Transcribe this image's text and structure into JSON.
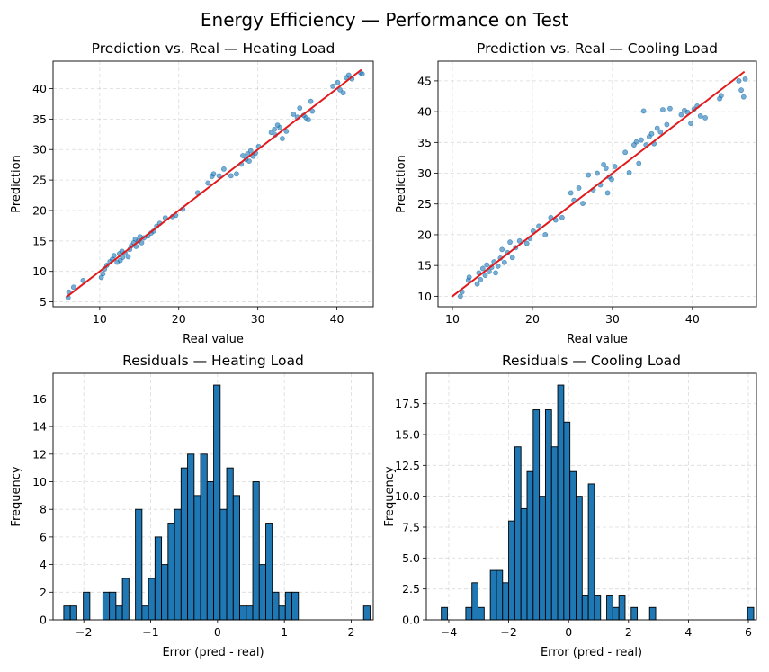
{
  "figure": {
    "title": "Energy Efficiency — Performance on Test"
  },
  "colors": {
    "scatter": "#1f77b4",
    "line": "#e31a1c",
    "bar": "#1f77b4",
    "bar_edge": "#000000",
    "grid": "#b0b0b0"
  },
  "chart_data": [
    {
      "type": "scatter",
      "title": "Prediction vs. Real — Heating Load",
      "xlabel": "Real value",
      "ylabel": "Prediction",
      "xlim": [
        4.1,
        44.6
      ],
      "ylim": [
        4.2,
        44.5
      ],
      "xticks": [
        10,
        20,
        30,
        40
      ],
      "yticks": [
        5,
        10,
        15,
        20,
        25,
        30,
        35,
        40
      ],
      "grid": true,
      "reference_line": {
        "x": [
          5.8,
          43.1
        ],
        "y": [
          5.8,
          43.1
        ]
      },
      "points": [
        [
          6.0,
          5.7
        ],
        [
          6.1,
          6.6
        ],
        [
          6.7,
          7.4
        ],
        [
          7.9,
          8.5
        ],
        [
          10.2,
          9.0
        ],
        [
          10.4,
          9.6
        ],
        [
          10.6,
          10.4
        ],
        [
          10.9,
          11.0
        ],
        [
          11.3,
          11.6
        ],
        [
          11.6,
          12.0
        ],
        [
          11.8,
          12.6
        ],
        [
          12.2,
          11.5
        ],
        [
          12.6,
          11.8
        ],
        [
          12.5,
          12.9
        ],
        [
          12.9,
          12.3
        ],
        [
          12.8,
          13.3
        ],
        [
          13.2,
          13.0
        ],
        [
          13.6,
          12.4
        ],
        [
          13.8,
          13.6
        ],
        [
          14.0,
          14.2
        ],
        [
          14.3,
          14.7
        ],
        [
          14.5,
          15.3
        ],
        [
          14.6,
          14.1
        ],
        [
          14.9,
          15.0
        ],
        [
          15.1,
          15.7
        ],
        [
          15.3,
          14.7
        ],
        [
          15.6,
          15.5
        ],
        [
          16.1,
          15.8
        ],
        [
          16.5,
          16.3
        ],
        [
          16.8,
          16.6
        ],
        [
          17.2,
          17.4
        ],
        [
          17.6,
          17.9
        ],
        [
          18.3,
          18.8
        ],
        [
          19.2,
          19.0
        ],
        [
          19.6,
          19.2
        ],
        [
          20.5,
          20.2
        ],
        [
          22.4,
          22.9
        ],
        [
          23.7,
          24.5
        ],
        [
          24.2,
          25.6
        ],
        [
          24.4,
          26.0
        ],
        [
          25.1,
          25.7
        ],
        [
          25.7,
          26.8
        ],
        [
          26.6,
          25.7
        ],
        [
          27.3,
          26.0
        ],
        [
          27.9,
          27.6
        ],
        [
          28.1,
          29.0
        ],
        [
          28.5,
          28.4
        ],
        [
          28.7,
          29.3
        ],
        [
          28.9,
          28.1
        ],
        [
          29.1,
          29.8
        ],
        [
          29.4,
          28.9
        ],
        [
          29.7,
          29.4
        ],
        [
          30.1,
          30.5
        ],
        [
          31.7,
          32.8
        ],
        [
          32.1,
          33.3
        ],
        [
          32.2,
          32.4
        ],
        [
          32.5,
          34.0
        ],
        [
          32.8,
          33.6
        ],
        [
          33.1,
          31.8
        ],
        [
          33.6,
          33.0
        ],
        [
          34.5,
          35.8
        ],
        [
          35.0,
          35.3
        ],
        [
          35.3,
          36.8
        ],
        [
          35.8,
          35.6
        ],
        [
          36.1,
          35.2
        ],
        [
          36.4,
          34.9
        ],
        [
          36.7,
          37.9
        ],
        [
          36.9,
          36.3
        ],
        [
          39.5,
          40.4
        ],
        [
          40.1,
          41.0
        ],
        [
          40.4,
          39.8
        ],
        [
          40.8,
          39.3
        ],
        [
          41.2,
          41.8
        ],
        [
          41.5,
          42.2
        ],
        [
          41.9,
          41.6
        ],
        [
          43.0,
          42.6
        ],
        [
          43.2,
          42.4
        ]
      ]
    },
    {
      "type": "scatter",
      "title": "Prediction vs. Real — Cooling Load",
      "xlabel": "Real value",
      "ylabel": "Prediction",
      "xlim": [
        8.2,
        48.0
      ],
      "ylim": [
        8.3,
        48.2
      ],
      "xticks": [
        10,
        20,
        30,
        40
      ],
      "yticks": [
        10,
        15,
        20,
        25,
        30,
        35,
        40,
        45
      ],
      "grid": true,
      "reference_line": {
        "x": [
          9.9,
          46.5
        ],
        "y": [
          9.9,
          46.5
        ]
      },
      "points": [
        [
          11.0,
          10.0
        ],
        [
          11.2,
          10.7
        ],
        [
          12.0,
          12.6
        ],
        [
          12.1,
          13.1
        ],
        [
          13.1,
          12.0
        ],
        [
          13.3,
          13.8
        ],
        [
          13.5,
          12.7
        ],
        [
          13.8,
          14.5
        ],
        [
          14.1,
          13.4
        ],
        [
          14.3,
          15.1
        ],
        [
          14.6,
          14.0
        ],
        [
          14.9,
          14.7
        ],
        [
          15.2,
          15.6
        ],
        [
          15.4,
          13.8
        ],
        [
          15.7,
          14.9
        ],
        [
          16.0,
          16.2
        ],
        [
          16.2,
          17.6
        ],
        [
          16.5,
          15.5
        ],
        [
          16.9,
          17.1
        ],
        [
          17.2,
          18.8
        ],
        [
          17.5,
          16.3
        ],
        [
          17.9,
          17.9
        ],
        [
          18.4,
          19.0
        ],
        [
          19.3,
          18.6
        ],
        [
          19.7,
          19.4
        ],
        [
          20.1,
          20.6
        ],
        [
          20.8,
          21.4
        ],
        [
          21.6,
          20.0
        ],
        [
          22.3,
          22.8
        ],
        [
          22.9,
          22.4
        ],
        [
          23.7,
          22.8
        ],
        [
          24.8,
          26.8
        ],
        [
          25.2,
          25.6
        ],
        [
          25.8,
          27.6
        ],
        [
          26.3,
          25.1
        ],
        [
          27.0,
          29.7
        ],
        [
          27.6,
          27.3
        ],
        [
          28.1,
          30.0
        ],
        [
          28.5,
          28.1
        ],
        [
          28.9,
          31.4
        ],
        [
          29.2,
          30.8
        ],
        [
          29.4,
          26.8
        ],
        [
          29.6,
          29.4
        ],
        [
          29.9,
          29.0
        ],
        [
          30.3,
          31.1
        ],
        [
          31.6,
          33.4
        ],
        [
          32.1,
          30.1
        ],
        [
          32.7,
          34.6
        ],
        [
          33.0,
          35.1
        ],
        [
          33.3,
          31.6
        ],
        [
          33.6,
          35.4
        ],
        [
          33.9,
          40.1
        ],
        [
          34.2,
          34.6
        ],
        [
          34.6,
          35.9
        ],
        [
          34.9,
          36.4
        ],
        [
          35.2,
          34.8
        ],
        [
          35.6,
          37.3
        ],
        [
          36.0,
          36.7
        ],
        [
          36.3,
          40.3
        ],
        [
          36.8,
          37.9
        ],
        [
          37.2,
          40.5
        ],
        [
          38.6,
          39.5
        ],
        [
          39.0,
          40.2
        ],
        [
          39.4,
          39.9
        ],
        [
          39.8,
          38.1
        ],
        [
          40.2,
          40.4
        ],
        [
          40.6,
          40.9
        ],
        [
          41.0,
          39.3
        ],
        [
          41.6,
          39.0
        ],
        [
          43.4,
          42.1
        ],
        [
          43.6,
          42.6
        ],
        [
          45.8,
          45.0
        ],
        [
          46.1,
          43.5
        ],
        [
          46.4,
          42.4
        ],
        [
          46.6,
          45.3
        ]
      ]
    },
    {
      "type": "bar",
      "title": "Residuals — Heating Load",
      "xlabel": "Error (pred - real)",
      "ylabel": "Frequency",
      "xlim": [
        -2.46,
        2.33
      ],
      "ylim": [
        0,
        17.85
      ],
      "xticks": [
        -2,
        -1,
        0,
        1,
        2
      ],
      "yticks": [
        0,
        2,
        4,
        6,
        8,
        10,
        12,
        14,
        16
      ],
      "grid": true,
      "bin_start": -2.3,
      "bin_width": 0.0975,
      "values": [
        1,
        1,
        0,
        2,
        0,
        0,
        2,
        2,
        1,
        3,
        0,
        8,
        1,
        3,
        6,
        4,
        7,
        8,
        11,
        12,
        9,
        12,
        10,
        17,
        8,
        11,
        9,
        1,
        1,
        10,
        4,
        7,
        2,
        1,
        2,
        2,
        0,
        0,
        0,
        0,
        0,
        0,
        0,
        0,
        0,
        0,
        1
      ]
    },
    {
      "type": "bar",
      "title": "Residuals — Cooling Load",
      "xlabel": "Error (pred - real)",
      "ylabel": "Frequency",
      "xlim": [
        -4.75,
        6.27
      ],
      "ylim": [
        0,
        19.95
      ],
      "xticks": [
        -4,
        -2,
        0,
        2,
        4,
        6
      ],
      "yticks": [
        0.0,
        2.5,
        5.0,
        7.5,
        10.0,
        12.5,
        15.0,
        17.5
      ],
      "ytick_labels": [
        "0.0",
        "2.5",
        "5.0",
        "7.5",
        "10.0",
        "12.5",
        "15.0",
        "17.5"
      ],
      "grid": true,
      "bin_start": -4.25,
      "bin_width": 0.2045,
      "values": [
        1,
        0,
        0,
        0,
        1,
        3,
        1,
        0,
        4,
        4,
        3,
        8,
        14,
        9,
        12,
        17,
        10,
        17,
        14,
        19,
        16,
        12,
        10,
        2,
        11,
        2,
        0,
        2,
        1,
        2,
        0,
        1,
        0,
        0,
        1,
        0,
        0,
        0,
        0,
        0,
        0,
        0,
        0,
        0,
        0,
        0,
        0,
        0,
        0,
        0,
        1
      ]
    }
  ]
}
